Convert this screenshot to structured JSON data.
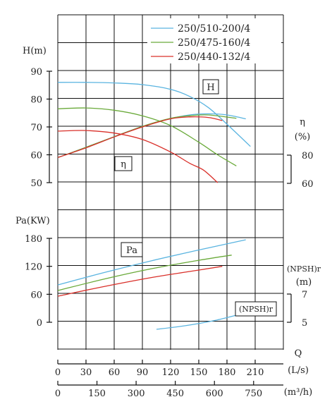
{
  "chart_data": {
    "type": "line",
    "legend": {
      "placement": "top-right",
      "entries": [
        {
          "name": "250/510-200/4",
          "color": "#5ab4e0"
        },
        {
          "name": "250/475-160/4",
          "color": "#6aaa3a"
        },
        {
          "name": "250/440-132/4",
          "color": "#d9302a"
        }
      ]
    },
    "head_axis": {
      "label": "H(m)",
      "ticks": [
        "90",
        "80",
        "70",
        "60",
        "50"
      ],
      "range": [
        45,
        100
      ]
    },
    "power_axis": {
      "label": "Pa(KW)",
      "ticks": [
        "180",
        "120",
        "60",
        "0"
      ],
      "range": [
        0,
        180
      ]
    },
    "eff_axis": {
      "label_top": "η",
      "label_unit": "(%)",
      "ticks": [
        "80",
        "60"
      ],
      "range": [
        60,
        80
      ]
    },
    "npsh_axis": {
      "label_top": "(NPSH)r",
      "label_unit": "(m)",
      "ticks": [
        "7",
        "5"
      ],
      "range": [
        5,
        7
      ]
    },
    "x_axis_ls": {
      "label_top": "Q",
      "label_unit": "(L/s)",
      "ticks": [
        "0",
        "30",
        "60",
        "90",
        "120",
        "150",
        "180",
        "210"
      ],
      "range": [
        0,
        240
      ]
    },
    "x_axis_m3h": {
      "label_unit": "(m³/h)",
      "ticks": [
        "0",
        "150",
        "300",
        "450",
        "600",
        "750"
      ],
      "range": [
        0,
        864
      ]
    },
    "annotations": {
      "head": "H",
      "efficiency": "η",
      "power": "Pa",
      "npsh": "(NPSH)r"
    },
    "series": [
      {
        "name": "250/510-200/4",
        "color": "#5ab4e0",
        "head": {
          "x": [
            0,
            30,
            60,
            90,
            120,
            140,
            160,
            180,
            205
          ],
          "y": [
            86,
            86,
            85.8,
            85.2,
            83.5,
            81,
            77,
            71,
            63
          ]
        },
        "efficiency": {
          "x": [
            0,
            30,
            60,
            90,
            120,
            140,
            160,
            180,
            200
          ],
          "y": [
            59,
            62.7,
            66.5,
            70.2,
            73,
            74.3,
            74.7,
            74.3,
            72.9
          ]
        },
        "power": {
          "x": [
            0,
            50,
            100,
            150,
            200
          ],
          "y": [
            80,
            107,
            132,
            155,
            177
          ]
        },
        "npsh": {
          "x": [
            105,
            135,
            165,
            190
          ],
          "y": [
            4.5,
            4.75,
            5.1,
            5.5
          ]
        }
      },
      {
        "name": "250/475-160/4",
        "color": "#6aaa3a",
        "head": {
          "x": [
            0,
            30,
            60,
            90,
            120,
            150,
            170,
            190
          ],
          "y": [
            76.5,
            76.8,
            76,
            74,
            70.5,
            64.5,
            60,
            56
          ]
        },
        "efficiency": {
          "x": [
            0,
            30,
            60,
            90,
            120,
            140,
            160,
            190
          ],
          "y": [
            59,
            62.7,
            66.5,
            70.2,
            73.1,
            74,
            74.3,
            73.1
          ]
        },
        "power": {
          "x": [
            0,
            50,
            100,
            150,
            185
          ],
          "y": [
            68,
            93,
            115,
            133,
            144
          ]
        },
        "npsh": null
      },
      {
        "name": "250/440-132/4",
        "color": "#d9302a",
        "head": {
          "x": [
            0,
            30,
            60,
            90,
            120,
            140,
            155,
            170
          ],
          "y": [
            68.5,
            68.7,
            67.8,
            65.5,
            61,
            57,
            54.5,
            50
          ]
        },
        "efficiency": {
          "x": [
            0,
            30,
            60,
            90,
            120,
            140,
            160,
            175
          ],
          "y": [
            59,
            62.5,
            66.4,
            70,
            72.9,
            73.6,
            73.4,
            72.3
          ]
        },
        "power": {
          "x": [
            0,
            50,
            100,
            150,
            175
          ],
          "y": [
            56,
            77,
            96,
            112,
            120
          ]
        },
        "npsh": null
      }
    ]
  }
}
